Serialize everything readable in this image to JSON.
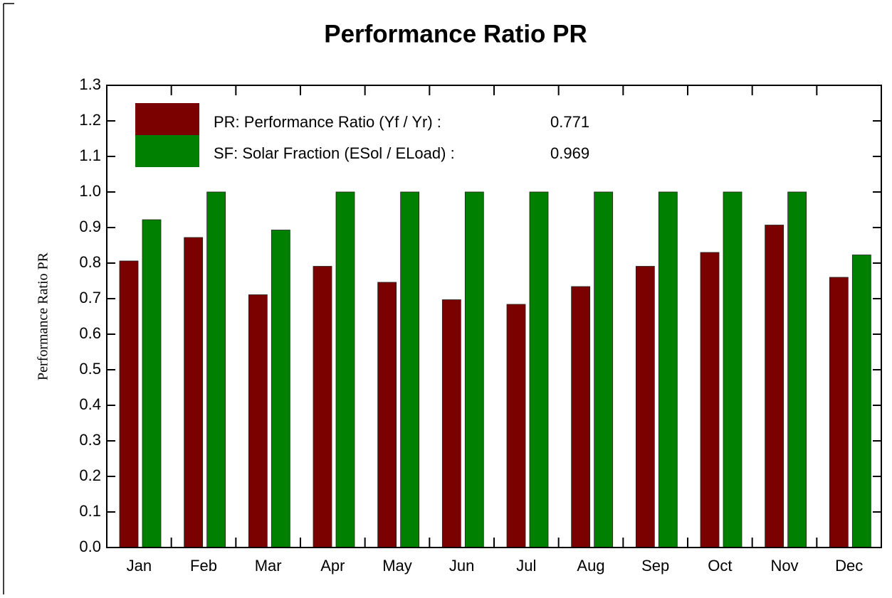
{
  "chart_data": {
    "type": "bar",
    "title": "Performance Ratio PR",
    "y_label": "Performance Ratio PR",
    "categories": [
      "Jan",
      "Feb",
      "Mar",
      "Apr",
      "May",
      "Jun",
      "Jul",
      "Aug",
      "Sep",
      "Oct",
      "Nov",
      "Dec"
    ],
    "series": [
      {
        "name": "PR: Performance Ratio (Yf / Yr) :",
        "legend_value": 0.771,
        "color": "#7b0000",
        "values": [
          0.806,
          0.872,
          0.711,
          0.791,
          0.746,
          0.697,
          0.684,
          0.734,
          0.791,
          0.83,
          0.907,
          0.76
        ]
      },
      {
        "name": "SF: Solar Fraction (ESol / ELoad) :",
        "legend_value": 0.969,
        "color": "#008000",
        "values": [
          0.922,
          1.0,
          0.893,
          1.0,
          1.0,
          1.0,
          1.0,
          1.0,
          1.0,
          1.0,
          1.0,
          0.823
        ]
      }
    ],
    "ylim": [
      0,
      1.3
    ],
    "yticks": [
      {
        "value": 0,
        "label": "0.0"
      },
      0.1,
      0.2,
      0.3,
      0.4,
      0.5,
      0.6,
      0.7,
      0.8,
      0.9,
      {
        "value": 1,
        "label": "1.0"
      },
      1.1,
      1.2,
      1.3
    ],
    "grid": false
  }
}
